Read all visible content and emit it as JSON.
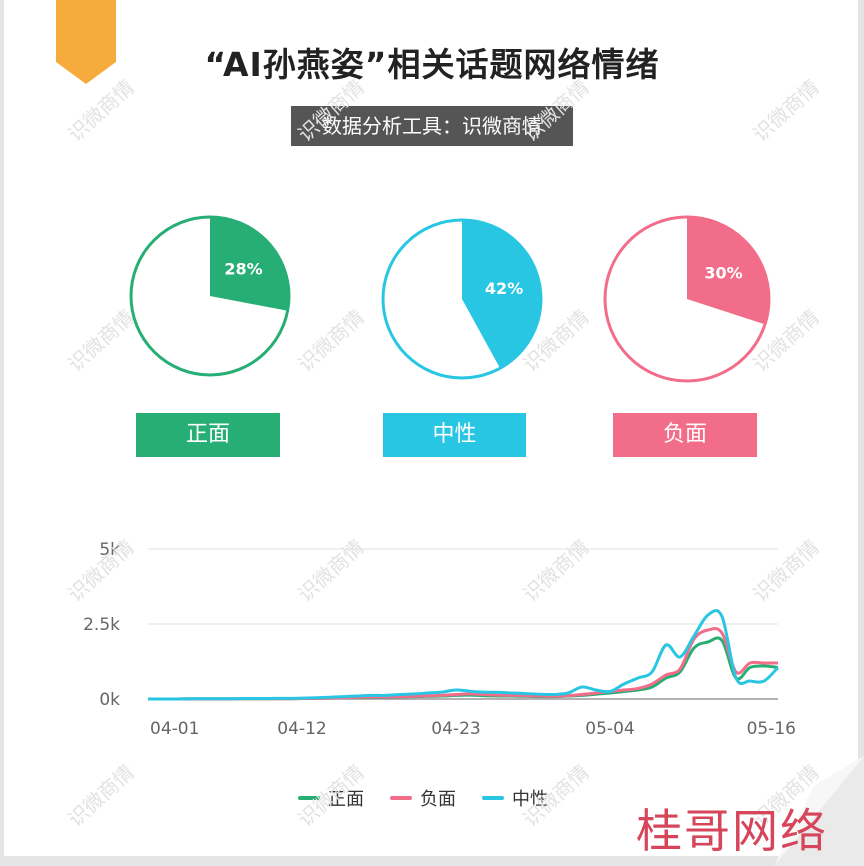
{
  "header": {
    "title": "“AI孙燕姿”相关话题网络情绪",
    "subtitle": "数据分析工具：识微商情"
  },
  "watermark": "识微商情",
  "signature": "桂哥网络",
  "colors": {
    "positive": "#27ae74",
    "neutral": "#29c6e3",
    "negative": "#f26d89",
    "ribbon": "#f6ac3d"
  },
  "chart_data": [
    {
      "type": "pie",
      "labels": [
        "正面",
        "中性",
        "负面"
      ],
      "values": [
        28,
        42,
        30
      ],
      "value_labels": [
        "28%",
        "42%",
        "30%"
      ]
    },
    {
      "type": "line",
      "categories": [
        "04-01",
        "04-02",
        "04-03",
        "04-04",
        "04-05",
        "04-06",
        "04-07",
        "04-08",
        "04-09",
        "04-10",
        "04-11",
        "04-12",
        "04-13",
        "04-14",
        "04-15",
        "04-16",
        "04-17",
        "04-18",
        "04-19",
        "04-20",
        "04-21",
        "04-22",
        "04-23",
        "04-24",
        "04-25",
        "04-26",
        "04-27",
        "04-28",
        "04-29",
        "04-30",
        "05-01",
        "05-02",
        "05-03",
        "05-04",
        "05-05",
        "05-06",
        "05-07",
        "05-08",
        "05-09",
        "05-10",
        "05-11",
        "05-12",
        "05-13",
        "05-14",
        "05-15",
        "05-16"
      ],
      "x_ticks": [
        "04-01",
        "04-12",
        "04-23",
        "05-04",
        "05-16"
      ],
      "y_ticks": [
        "5k",
        "2.5k",
        "0k"
      ],
      "ylim": [
        0,
        5000
      ],
      "grid": true,
      "legend": "bottom",
      "series": [
        {
          "name": "正面",
          "values": [
            0,
            0,
            0,
            5,
            5,
            5,
            5,
            10,
            10,
            10,
            10,
            15,
            20,
            30,
            40,
            50,
            60,
            60,
            70,
            80,
            90,
            100,
            120,
            130,
            110,
            100,
            100,
            90,
            80,
            80,
            100,
            120,
            160,
            200,
            250,
            300,
            400,
            700,
            900,
            1700,
            1900,
            1950,
            700,
            1050,
            1100,
            1050
          ]
        },
        {
          "name": "负面",
          "values": [
            0,
            0,
            0,
            5,
            5,
            5,
            5,
            10,
            10,
            10,
            10,
            15,
            20,
            30,
            40,
            60,
            70,
            70,
            80,
            90,
            110,
            120,
            150,
            170,
            150,
            130,
            120,
            110,
            100,
            90,
            110,
            150,
            200,
            250,
            300,
            350,
            500,
            800,
            1000,
            2000,
            2300,
            2200,
            900,
            1200,
            1200,
            1200
          ]
        },
        {
          "name": "中性",
          "values": [
            0,
            0,
            0,
            10,
            10,
            10,
            10,
            15,
            15,
            20,
            20,
            30,
            40,
            60,
            80,
            100,
            120,
            120,
            150,
            170,
            200,
            230,
            300,
            260,
            230,
            220,
            200,
            180,
            160,
            150,
            200,
            400,
            300,
            250,
            500,
            700,
            900,
            1800,
            1400,
            2100,
            2800,
            2750,
            700,
            600,
            600,
            1050
          ]
        }
      ]
    }
  ]
}
